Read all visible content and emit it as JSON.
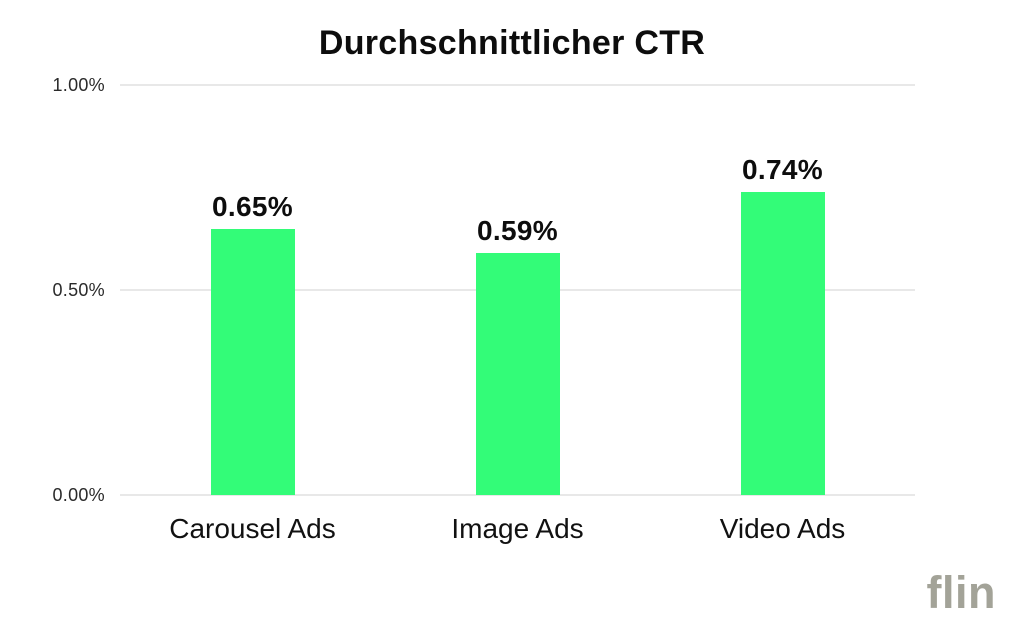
{
  "page": {
    "background": "#ffffff"
  },
  "chart_data": {
    "type": "bar",
    "title": "Durchschnittlicher CTR",
    "categories": [
      "Carousel Ads",
      "Image Ads",
      "Video Ads"
    ],
    "values": [
      0.65,
      0.59,
      0.74
    ],
    "value_labels": [
      "0.65%",
      "0.59%",
      "0.74%"
    ],
    "xlabel": "",
    "ylabel": "",
    "ylim": [
      0,
      1.0
    ],
    "y_ticks": [
      {
        "value": 1.0,
        "label": "1.00%"
      },
      {
        "value": 0.5,
        "label": "0.50%"
      },
      {
        "value": 0.0,
        "label": "0.00%"
      }
    ],
    "grid": true,
    "legend_position": "none",
    "bar_color": "#33fc78",
    "grid_color": "#e8e8e8",
    "text_color": "#0d0d0d",
    "tick_color": "#2a2a2a"
  },
  "footer": {
    "logo_text": "flin",
    "logo_color": "#a3a398"
  }
}
